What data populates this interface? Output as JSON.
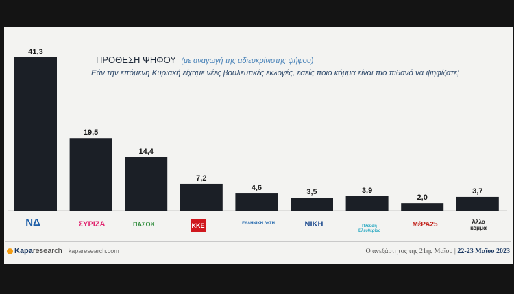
{
  "header": {
    "title": "ΠΡΟΘΕΣΗ ΨΗΦΟΥ",
    "subtitle": "(με αναγωγή της αδιευκρίνιστης ψήφου)",
    "question": "Εάν την επόμενη Κυριακή είχαμε νέες βουλευτικές εκλογές, εσείς ποιο κόμμα είναι πιο πιθανό να ψηφίζατε;"
  },
  "chart_data": {
    "type": "bar",
    "categories": [
      "ΝΔ",
      "ΣΥΡΙΖΑ",
      "ΠΑΣΟΚ",
      "ΚΚΕ",
      "Ελληνική Λύση",
      "ΝΙΚΗ",
      "Πλεύση Ελευθερίας",
      "ΜέΡΑ25",
      "Άλλο κόμμα"
    ],
    "values": [
      41.3,
      19.5,
      14.4,
      7.2,
      4.6,
      3.5,
      3.9,
      2.0,
      3.7
    ],
    "value_labels": [
      "41,3",
      "19,5",
      "14,4",
      "7,2",
      "4,6",
      "3,5",
      "3,9",
      "2,0",
      "3,7"
    ],
    "title": "ΠΡΟΘΕΣΗ ΨΗΦΟΥ",
    "ylim": [
      0,
      41.3
    ],
    "grid": false,
    "bar_color": "#1b1f26"
  },
  "logos": {
    "nd": "ΝΔ",
    "syriza": "ΣΥΡΙΖΑ",
    "pasok": "ΠΑΣΟΚ",
    "kke": "ΚΚΕ",
    "elliniki_lysi": "ΕΛΛΗΝΙΚΗ ΛΥΣΗ",
    "niki": "ΝΙΚΗ",
    "plefsi": "Πλεύση Ελευθερίας",
    "mera25": "ΜέΡΑ25",
    "allo": "Άλλο κόμμα"
  },
  "footer": {
    "brand": "Κapa",
    "brand_suffix": "research",
    "url": "kaparesearch.com",
    "source_prefix": "Ο ανεξάρτητος της 21ης Μαΐου",
    "source_date": "22-23 Μαΐου 2023"
  },
  "colors": {
    "background": "#141414",
    "panel": "#f3f3f1",
    "bar": "#1b1f26",
    "nd_blue": "#1f5fa8",
    "syriza_red": "#e0256f",
    "pasok_green": "#2e8b3a",
    "kke_red": "#d0181e",
    "niki_blue": "#1f4c8f",
    "mera25_red": "#e63027"
  }
}
